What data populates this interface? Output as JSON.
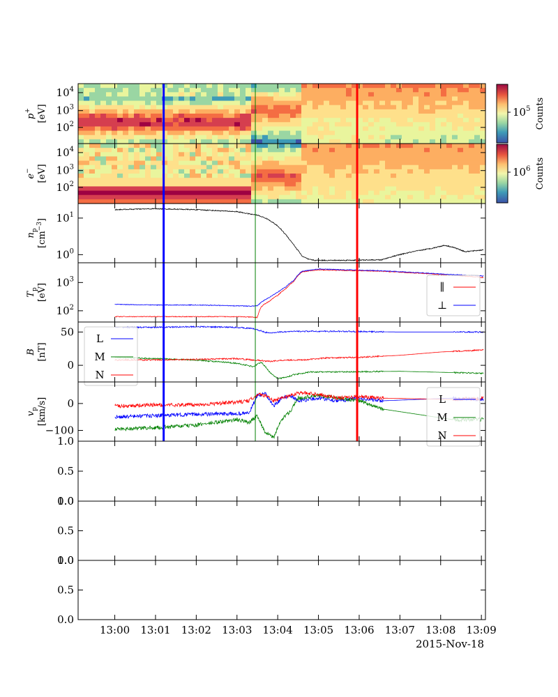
{
  "chart_data": {
    "type": "line",
    "date": "2015-Nov-18",
    "time_ticks": [
      "13:00",
      "13:01",
      "13:02",
      "13:03",
      "13:04",
      "13:05",
      "13:06",
      "13:07",
      "13:08",
      "13:09"
    ],
    "markers": [
      {
        "time": "13:01:12",
        "color": "#0000ff",
        "width": 3
      },
      {
        "time": "13:03:27",
        "color": "#008000",
        "width": 1
      },
      {
        "time": "13:05:57",
        "color": "#ff0000",
        "width": 3
      }
    ],
    "panels": [
      {
        "id": "p-spectrogram",
        "type": "heatmap",
        "ylabel": "p",
        "ylabel_sup": "+",
        "ylabel_unit": "[eV]",
        "yticks": [
          "10",
          "10",
          "10"
        ],
        "yticks_exp": [
          "2",
          "3",
          "4"
        ],
        "colorbar_label": "Counts",
        "colorbar_tick": "10",
        "colorbar_tick_exp": "5"
      },
      {
        "id": "e-spectrogram",
        "type": "heatmap",
        "ylabel": "e",
        "ylabel_sup": "−",
        "ylabel_unit": "[eV]",
        "yticks": [
          "10",
          "10",
          "10"
        ],
        "yticks_exp": [
          "2",
          "3",
          "4"
        ],
        "colorbar_label": "Counts",
        "colorbar_tick": "10",
        "colorbar_tick_exp": "6"
      },
      {
        "id": "np",
        "type": "line",
        "ylabel": "n",
        "ylabel_sub": "p",
        "ylabel_unit": "[cm",
        "ylabel_unit_exp": "−3",
        "ylabel_unit_end": "]",
        "yscale": "log",
        "ylim": [
          0.6,
          25
        ],
        "yticks": [
          "10",
          "10"
        ],
        "yticks_exp": [
          "0",
          "1"
        ],
        "series": [
          {
            "name": "",
            "color": "#000000",
            "x": [
              0,
              1,
              2,
              3,
              3.3,
              3.5,
              3.7,
              3.85,
              4.0,
              4.15,
              4.3,
              4.45,
              4.6,
              4.75,
              4.9,
              5.5,
              6.55,
              7.8,
              8.1,
              8.3,
              8.6,
              9.05
            ],
            "y": [
              17,
              18,
              17,
              15,
              13,
              12,
              10,
              8,
              6,
              4,
              2.5,
              1.5,
              0.9,
              0.75,
              0.7,
              0.7,
              0.72,
              1.5,
              1.8,
              1.6,
              1.2,
              1.35
            ]
          }
        ]
      },
      {
        "id": "tp",
        "type": "line",
        "ylabel": "T",
        "ylabel_sub": "p",
        "ylabel_unit": "[eV]",
        "yscale": "log",
        "ylim": [
          40,
          5000
        ],
        "yticks": [
          "10",
          "10"
        ],
        "yticks_exp": [
          "2",
          "3"
        ],
        "legend": [
          "∥",
          "⊥"
        ],
        "series": [
          {
            "name": "∥",
            "color": "#ff0000",
            "x": [
              0,
              1,
              2,
              3,
              3.3,
              3.5,
              3.6,
              3.8,
              4.0,
              4.2,
              4.4,
              4.6,
              5.0,
              6.55,
              9.05
            ],
            "y": [
              62,
              62,
              62,
              62,
              60,
              58,
              140,
              220,
              350,
              600,
              1100,
              2400,
              2800,
              2500,
              1500
            ]
          },
          {
            "name": "⊥",
            "color": "#0000ff",
            "x": [
              0,
              1,
              2,
              3,
              3.3,
              3.5,
              3.6,
              3.8,
              4.0,
              4.2,
              4.4,
              4.6,
              5.0,
              6.55,
              8.0,
              9.05
            ],
            "y": [
              170,
              160,
              160,
              150,
              145,
              150,
              200,
              300,
              450,
              700,
              1200,
              2500,
              3000,
              2600,
              2000,
              1700
            ]
          }
        ]
      },
      {
        "id": "b",
        "type": "line",
        "ylabel": "B",
        "ylabel_unit": "[nT]",
        "ylim": [
          -25,
          65
        ],
        "yticks": [
          "0",
          "50"
        ],
        "legend": [
          "L",
          "M",
          "N"
        ],
        "series": [
          {
            "name": "L",
            "color": "#0000ff",
            "x": [
              0,
              1,
              2,
              3,
              3.4,
              3.8,
              4.0,
              4.5,
              5.5,
              7,
              9.05
            ],
            "y": [
              57,
              57,
              58,
              57,
              55,
              48,
              50,
              51,
              51,
              50,
              50
            ]
          },
          {
            "name": "M",
            "color": "#008000",
            "x": [
              0,
              1,
              2,
              3,
              3.4,
              3.6,
              3.8,
              4.0,
              4.2,
              4.4,
              4.8,
              5.5,
              7,
              9.05
            ],
            "y": [
              12,
              10,
              8,
              3,
              -2,
              5,
              -10,
              -20,
              -18,
              -14,
              -10,
              -10,
              -9,
              -12
            ]
          },
          {
            "name": "N",
            "color": "#ff0000",
            "x": [
              0,
              1,
              2,
              3,
              3.4,
              3.8,
              4.2,
              4.6,
              5.2,
              6,
              7,
              8,
              9.05
            ],
            "y": [
              8,
              8,
              9,
              10,
              8,
              6,
              8,
              8,
              11,
              12,
              15,
              20,
              23
            ]
          }
        ]
      },
      {
        "id": "vp",
        "type": "line",
        "ylabel": "v",
        "ylabel_sub": "p",
        "ylabel_unit": "[km/s]",
        "ylim": [
          -140,
          80
        ],
        "yticks": [
          "−100",
          "0"
        ],
        "legend": [
          "L",
          "M",
          "N"
        ],
        "series": [
          {
            "name": "L",
            "color": "#0000ff",
            "x": [
              0,
              1,
              2,
              3,
              3.3,
              3.5,
              3.7,
              3.9,
              4.1,
              4.3,
              4.5,
              5.0,
              5.5,
              6.0,
              6.55,
              8.3,
              9.05
            ],
            "y": [
              -50,
              -45,
              -40,
              -38,
              -35,
              30,
              35,
              -10,
              20,
              30,
              10,
              20,
              10,
              20,
              10,
              20,
              15
            ]
          },
          {
            "name": "M",
            "color": "#008000",
            "x": [
              0,
              1,
              2,
              3,
              3.3,
              3.5,
              3.7,
              3.9,
              4.1,
              4.3,
              4.5,
              5.0,
              5.5,
              6.0,
              6.55,
              8.3,
              9.05
            ],
            "y": [
              -95,
              -90,
              -80,
              -60,
              -70,
              -45,
              -110,
              -125,
              -60,
              -30,
              20,
              30,
              20,
              10,
              -20,
              -60,
              -60
            ]
          },
          {
            "name": "N",
            "color": "#ff0000",
            "x": [
              0,
              1,
              2,
              3,
              3.3,
              3.5,
              3.7,
              3.9,
              4.1,
              4.3,
              4.5,
              5.0,
              5.5,
              6.0,
              6.55,
              8.3,
              9.05
            ],
            "y": [
              -10,
              -5,
              -5,
              5,
              10,
              35,
              30,
              10,
              20,
              30,
              40,
              35,
              20,
              25,
              20,
              15,
              20
            ]
          }
        ]
      },
      {
        "id": "empty-1",
        "type": "line",
        "ylim": [
          0,
          1
        ],
        "yticks": [
          "0.0",
          "0.5",
          "1.0"
        ]
      },
      {
        "id": "empty-2",
        "type": "line",
        "ylim": [
          0,
          1
        ],
        "yticks": [
          "0.0",
          "0.5",
          "1.0"
        ]
      },
      {
        "id": "empty-3",
        "type": "line",
        "ylim": [
          0,
          1
        ],
        "yticks": [
          "0.0",
          "0.5",
          "1.0"
        ]
      }
    ]
  }
}
